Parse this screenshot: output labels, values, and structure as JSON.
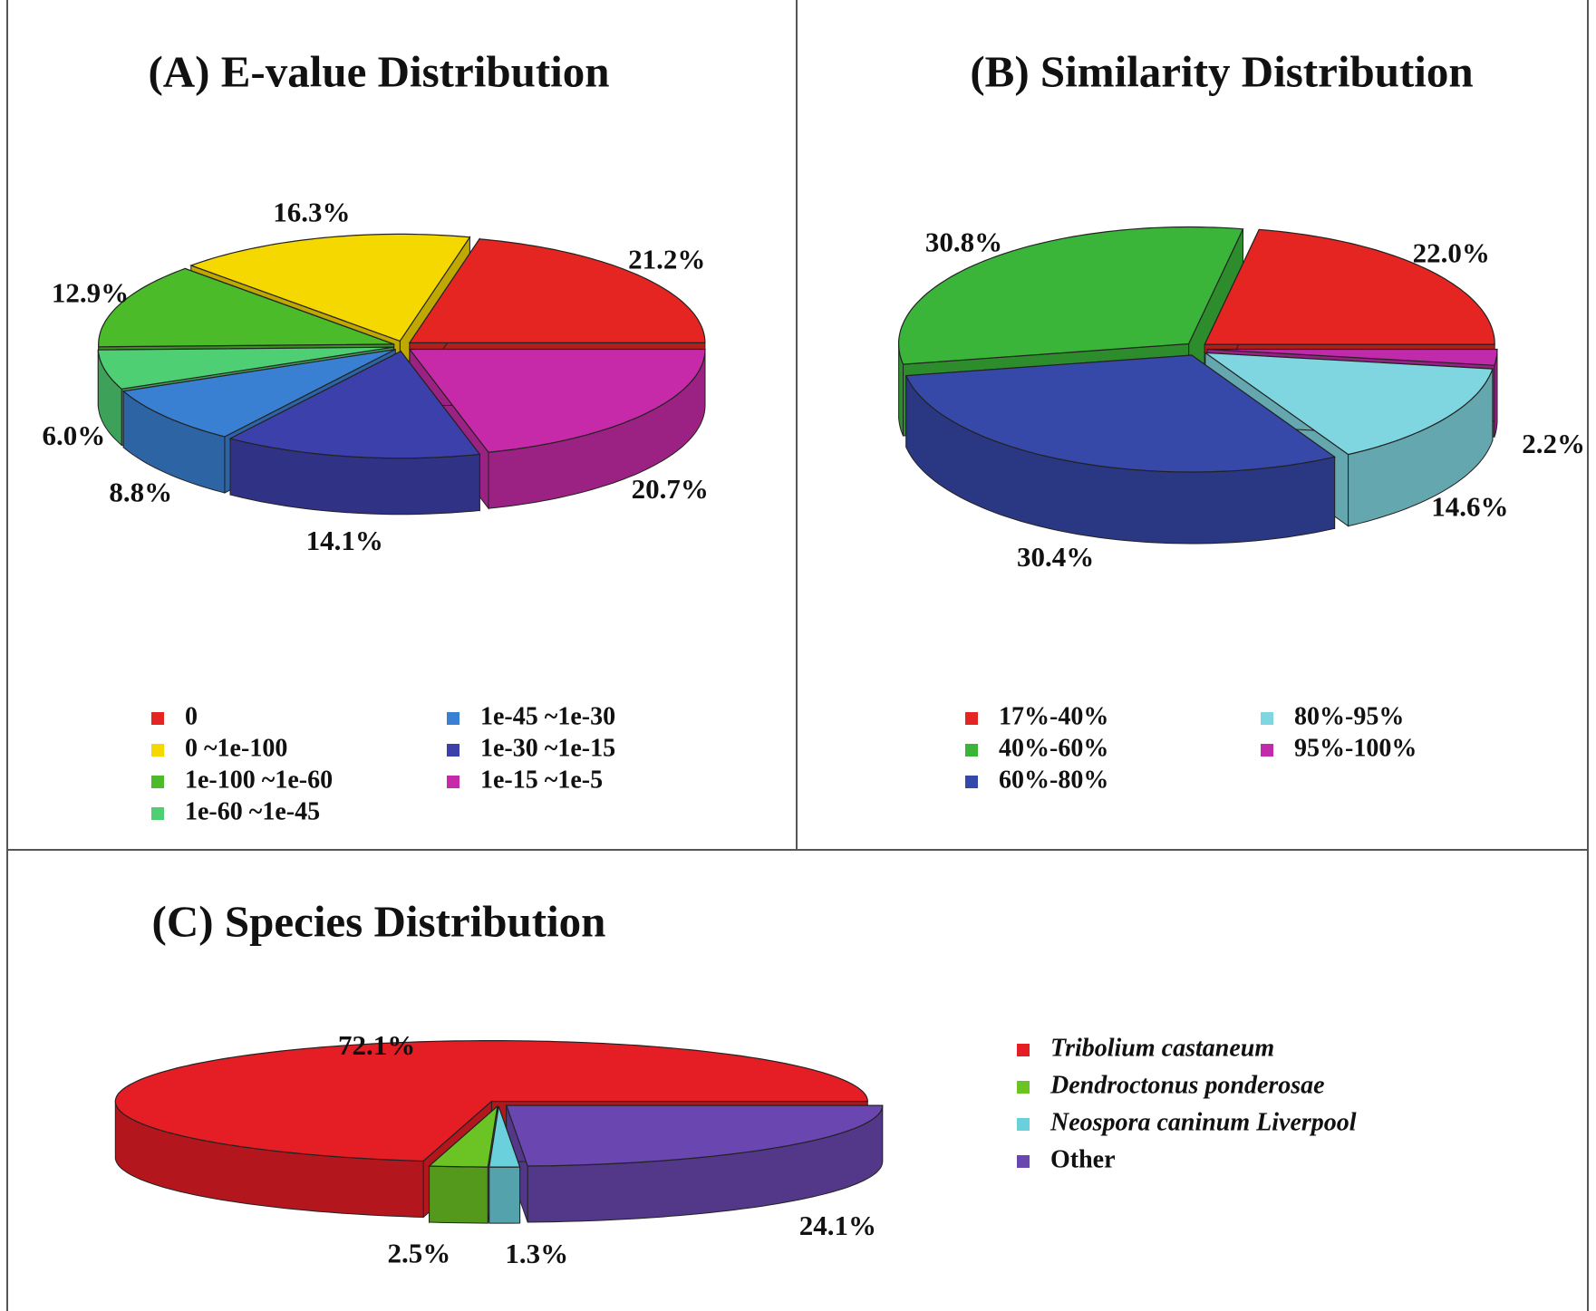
{
  "chart_data": [
    {
      "type": "pie",
      "title": "(A) E-value Distribution",
      "categories": [
        "0",
        "0 ~1e-100",
        "1e-100 ~1e-60",
        "1e-60 ~1e-45",
        "1e-45 ~1e-30",
        "1e-30 ~1e-15",
        "1e-15 ~1e-5"
      ],
      "values": [
        21.2,
        16.3,
        12.9,
        6.0,
        8.8,
        14.1,
        20.7
      ],
      "value_labels": [
        "21.2%",
        "16.3%",
        "12.9%",
        "6.0%",
        "8.8%",
        "14.1%",
        "20.7%"
      ],
      "colors": [
        "#e52521",
        "#f5d800",
        "#4cbb2a",
        "#4fcf74",
        "#3a80d2",
        "#3c40aa",
        "#c72aa8"
      ]
    },
    {
      "type": "pie",
      "title": "(B) Similarity Distribution",
      "categories": [
        "17%-40%",
        "40%-60%",
        "60%-80%",
        "80%-95%",
        "95%-100%"
      ],
      "values": [
        22.0,
        30.8,
        30.4,
        14.6,
        2.2
      ],
      "value_labels": [
        "22.0%",
        "30.8%",
        "30.4%",
        "14.6%",
        "2.2%"
      ],
      "colors": [
        "#e52521",
        "#3ab53a",
        "#3648a8",
        "#80d6e0",
        "#c12aaa"
      ]
    },
    {
      "type": "pie",
      "title": "(C) Species Distribution",
      "categories": [
        "Tribolium castaneum",
        "Dendroctonus ponderosae",
        "Neospora caninum Liverpool",
        "Other"
      ],
      "values": [
        72.1,
        2.5,
        1.3,
        24.1
      ],
      "value_labels": [
        "72.1%",
        "2.5%",
        "1.3%",
        "24.1%"
      ],
      "colors": [
        "#e51e25",
        "#6cc324",
        "#6ad0dc",
        "#6a47b0"
      ]
    }
  ]
}
